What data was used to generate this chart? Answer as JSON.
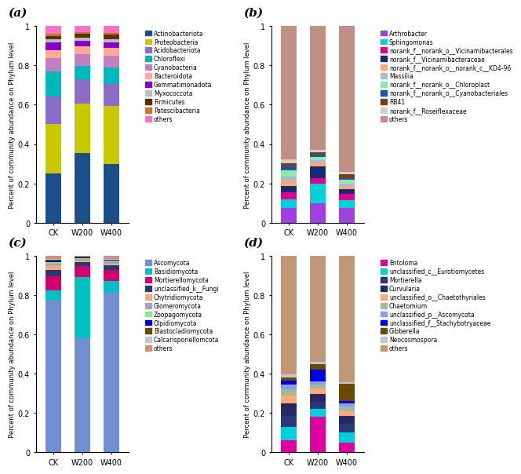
{
  "panel_a": {
    "title": "(a)",
    "categories": [
      "CK",
      "W200",
      "W400"
    ],
    "labels": [
      "Actinobacteriota",
      "Proteobacteria",
      "Acidobacteriota",
      "Chloroflexi",
      "Cyanobacteria",
      "Bacteroidota",
      "Gemmatimonadota",
      "Myxococcota",
      "Firmicutes",
      "Patescibacteria",
      "others"
    ],
    "colors": [
      "#1B4F8A",
      "#C8C800",
      "#8B6CC8",
      "#00B8B8",
      "#C080C0",
      "#FFAA96",
      "#8800CC",
      "#BCBCBC",
      "#5A3000",
      "#C87820",
      "#FF70C8"
    ],
    "values": [
      [
        0.25,
        0.355,
        0.3
      ],
      [
        0.25,
        0.25,
        0.295
      ],
      [
        0.14,
        0.12,
        0.11
      ],
      [
        0.13,
        0.07,
        0.085
      ],
      [
        0.065,
        0.06,
        0.06
      ],
      [
        0.04,
        0.04,
        0.038
      ],
      [
        0.04,
        0.03,
        0.028
      ],
      [
        0.018,
        0.015,
        0.015
      ],
      [
        0.015,
        0.02,
        0.025
      ],
      [
        0.012,
        0.01,
        0.009
      ],
      [
        0.04,
        0.03,
        0.035
      ]
    ]
  },
  "panel_b": {
    "title": "(b)",
    "categories": [
      "CK",
      "W200",
      "W400"
    ],
    "labels": [
      "Arthrobacter",
      "Sphingomonas",
      "norank_f__norank_o__Vicinamibacterales",
      "norank_f__Vicinamibacteraceae",
      "norank_f__norank_o__norank_c__KD4-96",
      "Massilia",
      "norank_f__norank_o__Chloroplast",
      "norank_f__norank_o__Cyanobacteriales",
      "RB41",
      "norank_f__Roseiflexaceae",
      "others"
    ],
    "colors": [
      "#A040E0",
      "#00D0D8",
      "#E0008A",
      "#1A2878",
      "#FFA878",
      "#B0B8CC",
      "#90E8B0",
      "#1558B0",
      "#7A4010",
      "#D0D0D0",
      "#C09088"
    ],
    "values": [
      [
        0.075,
        0.1,
        0.075
      ],
      [
        0.045,
        0.1,
        0.04
      ],
      [
        0.035,
        0.025,
        0.03
      ],
      [
        0.03,
        0.06,
        0.025
      ],
      [
        0.03,
        0.02,
        0.018
      ],
      [
        0.02,
        0.015,
        0.012
      ],
      [
        0.03,
        0.015,
        0.018
      ],
      [
        0.02,
        0.01,
        0.01
      ],
      [
        0.018,
        0.015,
        0.018
      ],
      [
        0.018,
        0.01,
        0.012
      ],
      [
        0.679,
        0.63,
        0.742
      ]
    ]
  },
  "panel_c": {
    "title": "(c)",
    "categories": [
      "CK",
      "W200",
      "W400"
    ],
    "labels": [
      "Ascomycota",
      "Basidiomycota",
      "Mortierellomycota",
      "unclassified_k__Fungi",
      "Chytridiomycota",
      "Glomeromycota",
      "Zoopagomycota",
      "Olpidiomycota",
      "Blastocladiomycota",
      "Calcarisporiellomcota",
      "others"
    ],
    "colors": [
      "#7090D0",
      "#00C0C0",
      "#D00070",
      "#283870",
      "#FFA878",
      "#A0A0C8",
      "#88E888",
      "#0000C0",
      "#684800",
      "#C8C8C8",
      "#D09070"
    ],
    "values": [
      [
        0.775,
        0.58,
        0.812
      ],
      [
        0.05,
        0.31,
        0.06
      ],
      [
        0.07,
        0.055,
        0.055
      ],
      [
        0.03,
        0.02,
        0.022
      ],
      [
        0.025,
        0.01,
        0.01
      ],
      [
        0.01,
        0.008,
        0.01
      ],
      [
        0.008,
        0.005,
        0.005
      ],
      [
        0.005,
        0.003,
        0.003
      ],
      [
        0.005,
        0.003,
        0.003
      ],
      [
        0.004,
        0.002,
        0.002
      ],
      [
        0.018,
        0.004,
        0.018
      ]
    ]
  },
  "panel_d": {
    "title": "(d)",
    "categories": [
      "CK",
      "W200",
      "W400"
    ],
    "labels": [
      "Entoloma",
      "unclassified_c__Eurotiomycetes",
      "Mortierella",
      "Curvularia",
      "unclassified_o__Chaetothyriales",
      "Chaetomium",
      "unclassified_p__Ascomycota",
      "unclassified_f__Stachybotryaceae",
      "Gibberella",
      "Neocosmospora",
      "others"
    ],
    "colors": [
      "#E000A0",
      "#00D0D8",
      "#283878",
      "#282860",
      "#FFA878",
      "#A0B8A0",
      "#88A0E8",
      "#0000E0",
      "#6A4800",
      "#C0C8D0",
      "#C09878"
    ],
    "values": [
      [
        0.06,
        0.18,
        0.05
      ],
      [
        0.07,
        0.04,
        0.05
      ],
      [
        0.055,
        0.035,
        0.045
      ],
      [
        0.065,
        0.04,
        0.04
      ],
      [
        0.04,
        0.028,
        0.025
      ],
      [
        0.03,
        0.02,
        0.022
      ],
      [
        0.025,
        0.018,
        0.018
      ],
      [
        0.02,
        0.06,
        0.012
      ],
      [
        0.015,
        0.028,
        0.085
      ],
      [
        0.015,
        0.01,
        0.01
      ],
      [
        0.605,
        0.541,
        0.643
      ]
    ]
  },
  "ylabel": "Percent of community abundance on Phylum level",
  "bar_width": 0.55,
  "ylim": [
    0,
    1.0
  ]
}
